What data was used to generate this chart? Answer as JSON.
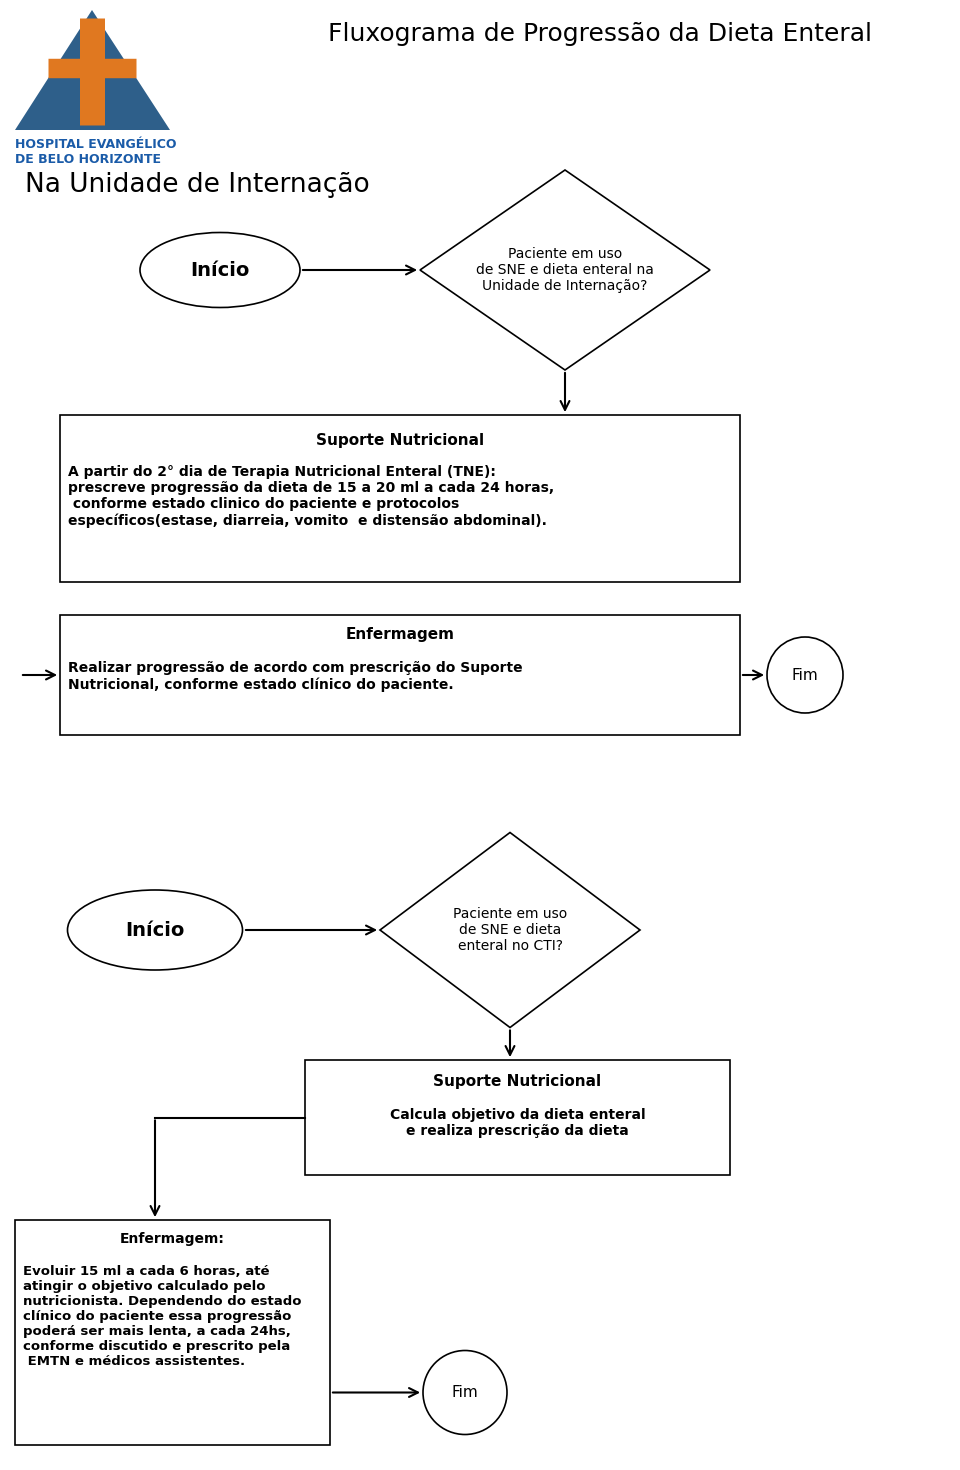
{
  "title": "Fluxograma de Progressão da Dieta Enteral",
  "section1_label": "Na Unidade de Internação",
  "inicio1_text": "Início",
  "diamond1_text": "Paciente em uso\nde SNE e dieta enteral na\nUnidade de Internação?",
  "box1_title": "Suporte Nutricional",
  "box1_body": "A partir do 2° dia de Terapia Nutricional Enteral (TNE):\nprescreve progressão da dieta de 15 a 20 ml a cada 24 horas,\n conforme estado clinico do paciente e protocolos\nespecíficos(estase, diarreia, vomito  e distensão abdominal).",
  "box2_title": "Enfermagem",
  "box2_body": "Realizar progressão de acordo com prescrição do Suporte\nNutricional, conforme estado clínico do paciente.",
  "fim1_text": "Fim",
  "inicio2_text": "Início",
  "diamond2_text": "Paciente em uso\nde SNE e dieta\nenteral no CTI?",
  "box3_title": "Suporte Nutricional",
  "box3_body": "Calcula objetivo da dieta enteral\ne realiza prescrição da dieta",
  "box4_title": "Enfermagem:",
  "box4_body": "Evoluir 15 ml a cada 6 horas, até\natingir o objetivo calculado pelo\nnutricionista. Dependendo do estado\nclínico do paciente essa progressão\npoderá ser mais lenta, a cada 24hs,\nconforme discutido e prescrito pela\n EMTN e médicos assistentes.",
  "fim2_text": "Fim",
  "bg_color": "#ffffff",
  "hospital_name_line1": "HOSPITAL EVANGÉLICO",
  "hospital_name_line2": "DE BELO HORIZONTE",
  "logo_blue": "#2e5f8a",
  "logo_orange": "#e07820",
  "logo_text_color": "#1a5ba8"
}
